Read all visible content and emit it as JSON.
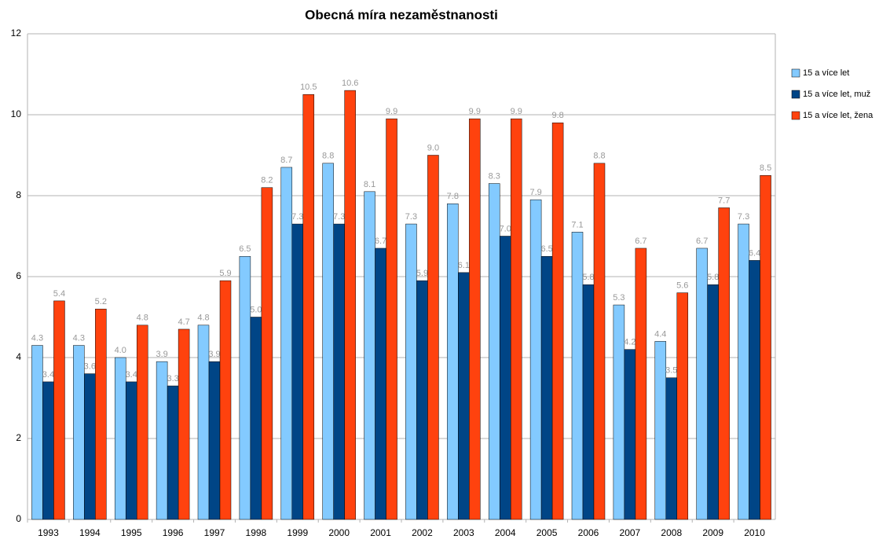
{
  "chart_data": {
    "type": "bar",
    "title": "Obecná míra nezaměstnanosti",
    "categories": [
      "1993",
      "1994",
      "1995",
      "1996",
      "1997",
      "1998",
      "1999",
      "2000",
      "2001",
      "2002",
      "2003",
      "2004",
      "2005",
      "2006",
      "2007",
      "2008",
      "2009",
      "2010"
    ],
    "series": [
      {
        "name": "15 a více let",
        "color": "#83caff",
        "values": [
          4.3,
          4.3,
          4.0,
          3.9,
          4.8,
          6.5,
          8.7,
          8.8,
          8.1,
          7.3,
          7.8,
          8.3,
          7.9,
          7.1,
          5.3,
          4.4,
          6.7,
          7.3
        ],
        "value_labels": [
          "4.3",
          "4.3",
          "4.0",
          "3.9",
          "4.8",
          "6.5",
          "8.7",
          "8.8",
          "8.1",
          "7.3",
          "7.8",
          "8.3",
          "7.9",
          "7.1",
          "5.3",
          "4.4",
          "6.7",
          "7.3"
        ]
      },
      {
        "name": "15 a více let, muž",
        "color": "#004586",
        "values": [
          3.4,
          3.6,
          3.4,
          3.3,
          3.9,
          5.0,
          7.3,
          7.3,
          6.7,
          5.9,
          6.1,
          7.0,
          6.5,
          5.8,
          4.2,
          3.5,
          5.8,
          6.4
        ],
        "value_labels": [
          "3.4",
          "3.6",
          "3.4",
          "3.3",
          "3.9",
          "5.0",
          "7.3",
          "7.3",
          "6.7",
          "5.9",
          "6.1",
          "7.0",
          "6.5",
          "5.8",
          "4.2",
          "3.5",
          "5.8",
          "6.4"
        ]
      },
      {
        "name": "15 a více let, žena",
        "color": "#ff420e",
        "values": [
          5.4,
          5.2,
          4.8,
          4.7,
          5.9,
          8.2,
          10.5,
          10.6,
          9.9,
          9.0,
          9.9,
          9.9,
          9.8,
          8.8,
          6.7,
          5.6,
          7.7,
          8.5
        ],
        "value_labels": [
          "5.4",
          "5.2",
          "4.8",
          "4.7",
          "5.9",
          "8.2",
          "10.5",
          "10.6",
          "9.9",
          "9.0",
          "9.9",
          "9.9",
          "9.8",
          "8.8",
          "6.7",
          "5.6",
          "7.7",
          "8.5"
        ]
      }
    ],
    "ylim": [
      0,
      12
    ],
    "yticks": [
      0,
      2,
      4,
      6,
      8,
      10,
      12
    ],
    "grid": true,
    "legend": "right"
  }
}
